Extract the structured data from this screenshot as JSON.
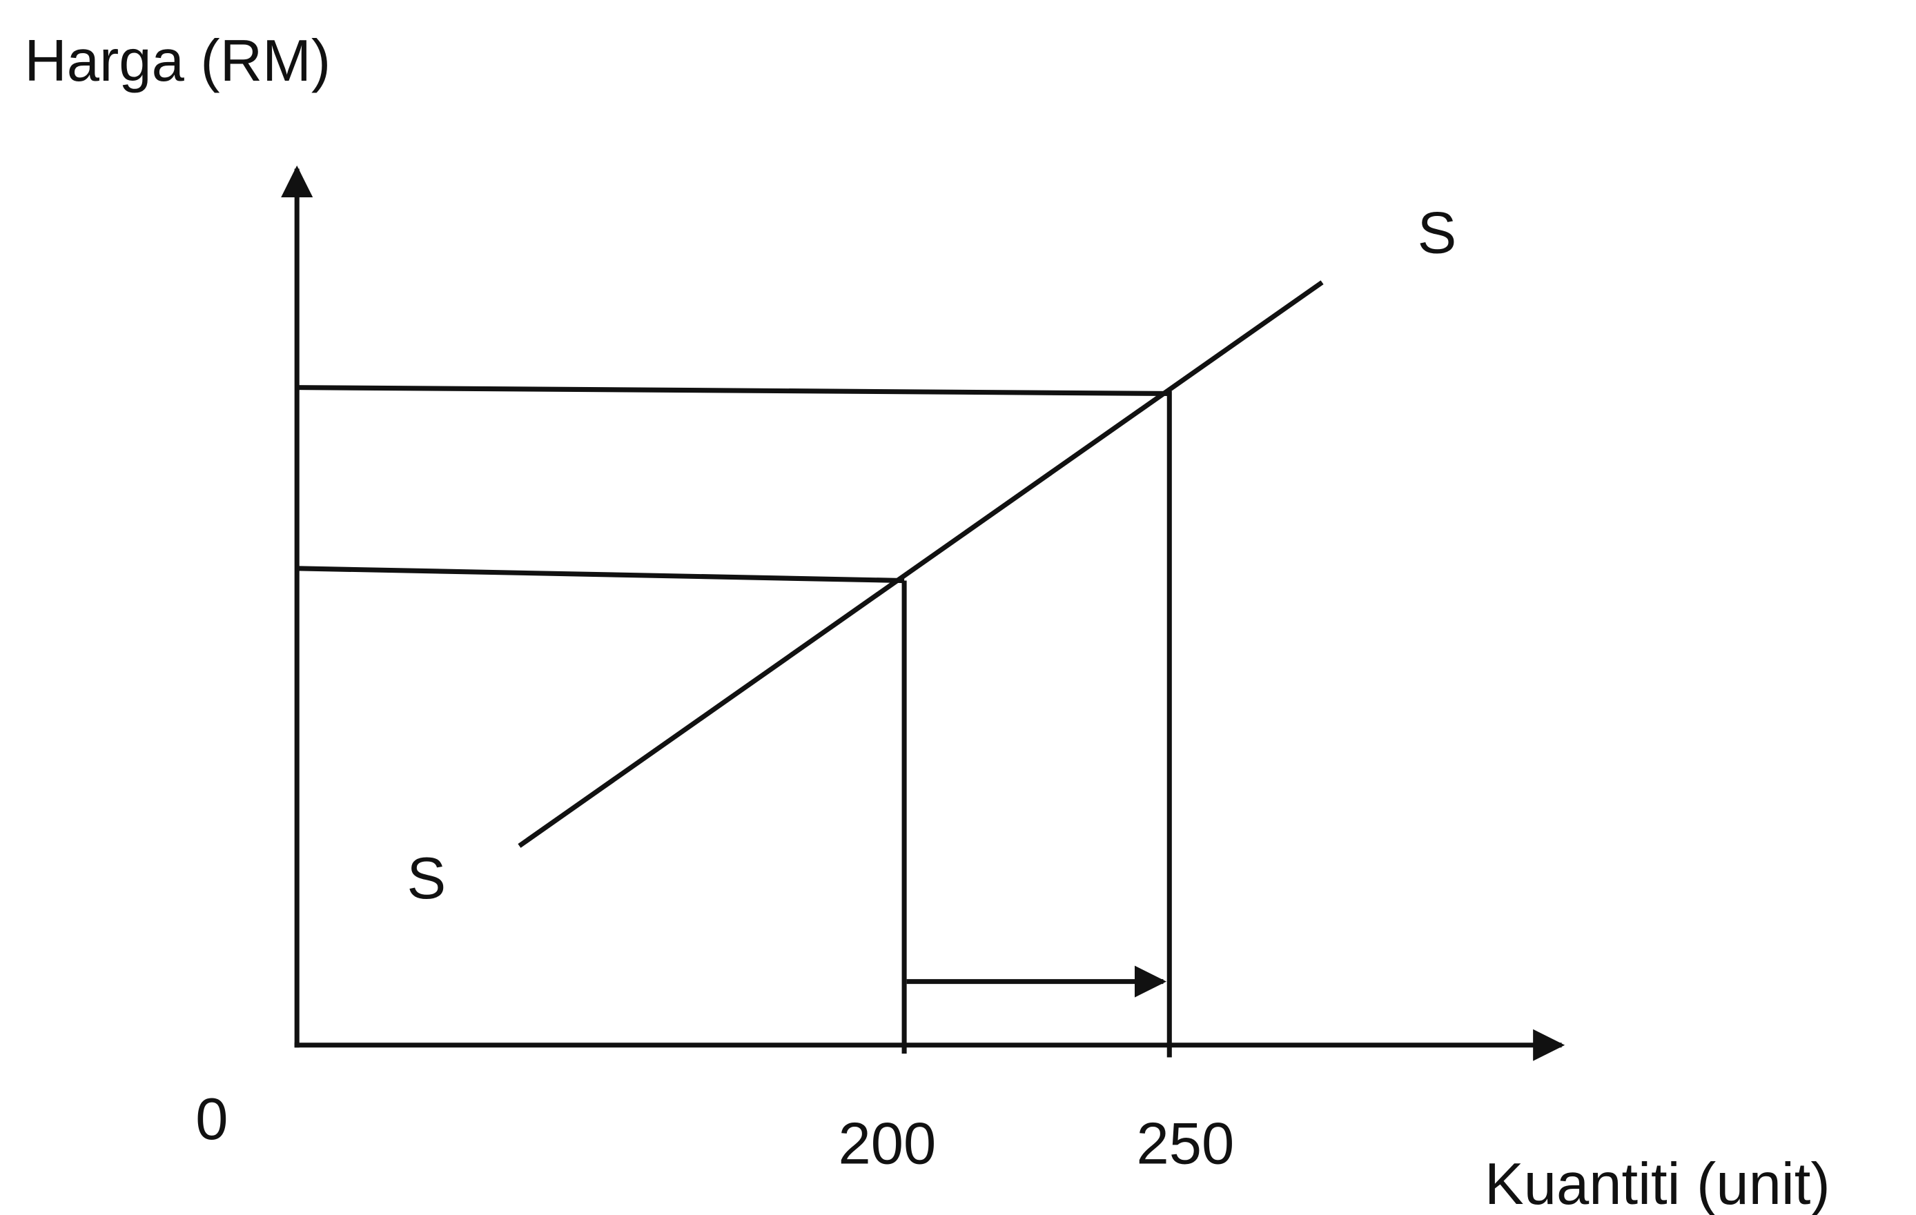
{
  "axes": {
    "y_label": "Harga (RM)",
    "x_label": "Kuantiti (unit)",
    "origin": "0"
  },
  "x_ticks": [
    "200",
    "250"
  ],
  "curve": {
    "label_top": "S",
    "label_bottom": "S"
  }
}
